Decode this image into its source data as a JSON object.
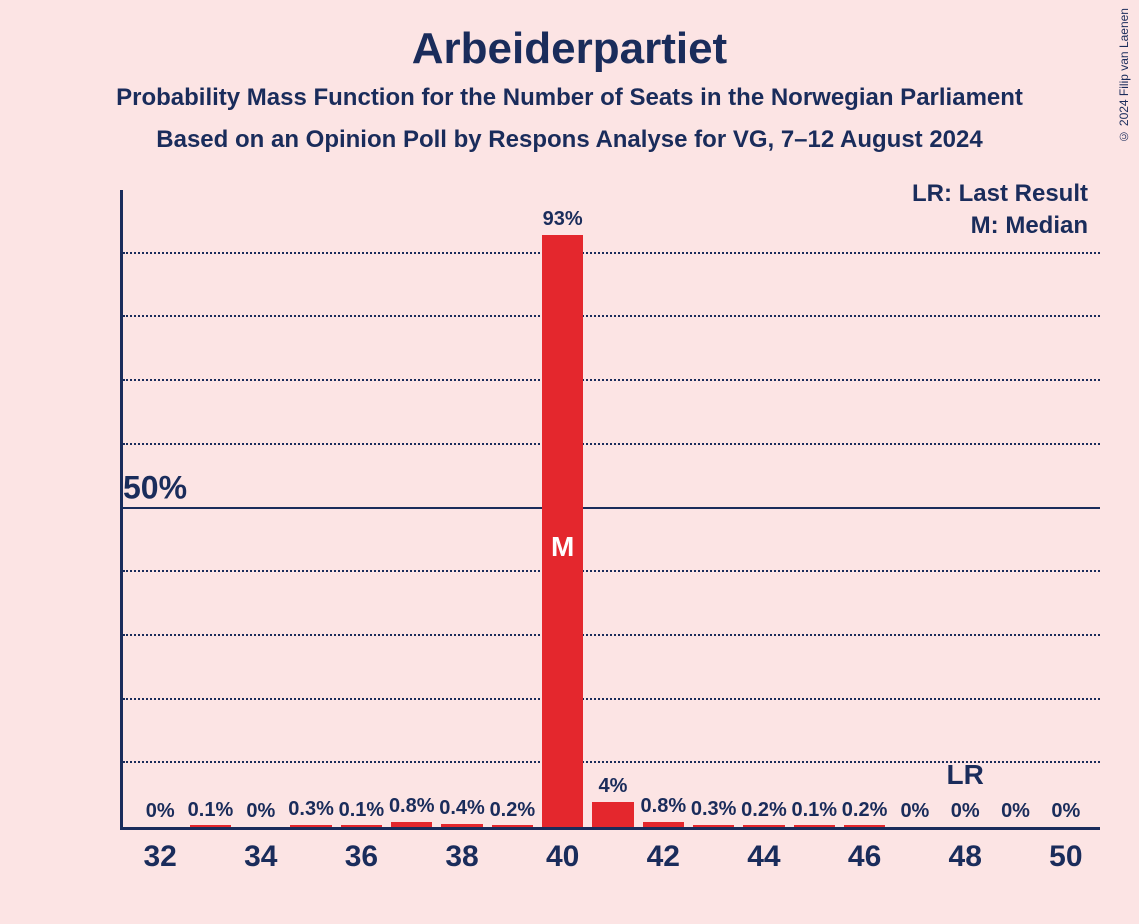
{
  "title": "Arbeiderpartiet",
  "subtitle1": "Probability Mass Function for the Number of Seats in the Norwegian Parliament",
  "subtitle2": "Based on an Opinion Poll by Respons Analyse for VG, 7–12 August 2024",
  "copyright": "© 2024 Filip van Laenen",
  "legend": {
    "lr": "LR: Last Result",
    "m": "M: Median"
  },
  "chart": {
    "type": "bar",
    "background_color": "#fce4e4",
    "bar_color": "#e4272d",
    "axis_color": "#1a2c5b",
    "grid_color": "#1a2c5b",
    "text_color": "#1a2c5b",
    "bar_inner_text_color": "#ffffff",
    "title_fontsize": 44,
    "subtitle_fontsize": 24,
    "axis_label_fontsize": 30,
    "bar_label_fontsize": 20,
    "legend_fontsize": 24,
    "ylim": [
      0,
      100
    ],
    "y_axis_label": "50%",
    "y_axis_label_at": 50,
    "gridlines": [
      10,
      20,
      30,
      40,
      50,
      60,
      70,
      80,
      90
    ],
    "solid_gridline": 50,
    "x_range": [
      32,
      50
    ],
    "x_ticks": [
      32,
      34,
      36,
      38,
      40,
      42,
      44,
      46,
      48,
      50
    ],
    "bars": [
      {
        "x": 32,
        "value": 0,
        "label": "0%"
      },
      {
        "x": 33,
        "value": 0.1,
        "label": "0.1%"
      },
      {
        "x": 34,
        "value": 0,
        "label": "0%"
      },
      {
        "x": 35,
        "value": 0.3,
        "label": "0.3%"
      },
      {
        "x": 36,
        "value": 0.1,
        "label": "0.1%"
      },
      {
        "x": 37,
        "value": 0.8,
        "label": "0.8%"
      },
      {
        "x": 38,
        "value": 0.4,
        "label": "0.4%"
      },
      {
        "x": 39,
        "value": 0.2,
        "label": "0.2%"
      },
      {
        "x": 40,
        "value": 93,
        "label": "93%",
        "marker": "M"
      },
      {
        "x": 41,
        "value": 4,
        "label": "4%"
      },
      {
        "x": 42,
        "value": 0.8,
        "label": "0.8%"
      },
      {
        "x": 43,
        "value": 0.3,
        "label": "0.3%"
      },
      {
        "x": 44,
        "value": 0.2,
        "label": "0.2%"
      },
      {
        "x": 45,
        "value": 0.1,
        "label": "0.1%"
      },
      {
        "x": 46,
        "value": 0.2,
        "label": "0.2%"
      },
      {
        "x": 47,
        "value": 0,
        "label": "0%"
      },
      {
        "x": 48,
        "value": 0,
        "label": "0%",
        "lr": true
      },
      {
        "x": 49,
        "value": 0,
        "label": "0%"
      },
      {
        "x": 50,
        "value": 0,
        "label": "0%"
      }
    ],
    "lr_text": "LR",
    "bar_width_ratio": 0.82
  }
}
